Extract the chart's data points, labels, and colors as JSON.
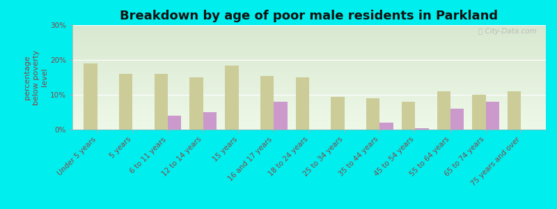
{
  "title": "Breakdown by age of poor male residents in Parkland",
  "ylabel": "percentage\nbelow poverty\nlevel",
  "categories": [
    "Under 5 years",
    "5 years",
    "6 to 11 years",
    "12 to 14 years",
    "15 years",
    "16 and 17 years",
    "18 to 24 years",
    "25 to 34 years",
    "35 to 44 years",
    "45 to 54 years",
    "55 to 64 years",
    "65 to 74 years",
    "75 years and over"
  ],
  "parkland_values": [
    0,
    0,
    4.0,
    5.0,
    0,
    8.0,
    0,
    0,
    2.0,
    0.5,
    6.0,
    8.0,
    0
  ],
  "florida_values": [
    19.0,
    16.0,
    16.0,
    15.0,
    18.5,
    15.5,
    15.0,
    9.5,
    9.0,
    8.0,
    11.0,
    10.0,
    11.0
  ],
  "ylim": [
    0,
    30
  ],
  "yticks": [
    0,
    10,
    20,
    30
  ],
  "ytick_labels": [
    "0%",
    "10%",
    "20%",
    "30%"
  ],
  "parkland_color": "#cc99cc",
  "florida_color": "#cccc99",
  "background_top": "#d8e8d0",
  "background_bottom": "#eef8e8",
  "bg_outer": "#00eeee",
  "title_fontsize": 13,
  "axis_label_fontsize": 8,
  "tick_fontsize": 7.5,
  "tick_color": "#884444",
  "bar_width": 0.38
}
